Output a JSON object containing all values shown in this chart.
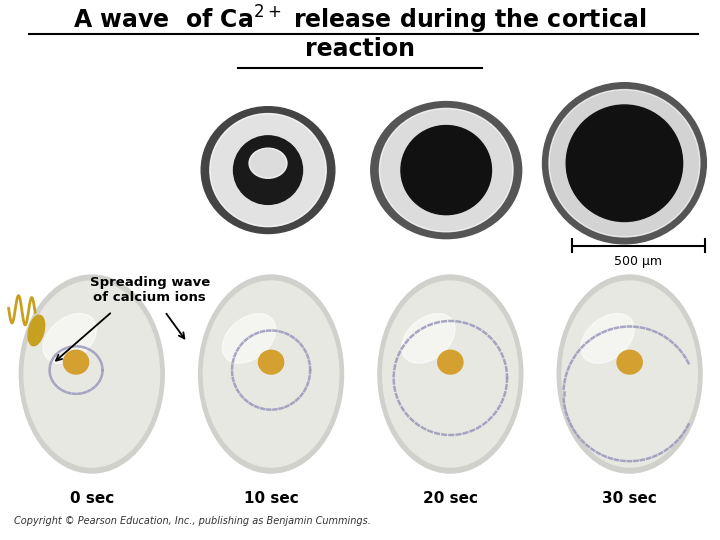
{
  "title_line1": "A wave  of Ca",
  "title_superscript": "2+",
  "title_line2": " release during the cortical",
  "title_line3": "reaction",
  "background_color": "#ffffff",
  "times": [
    "0 sec",
    "10 sec",
    "20 sec",
    "30 sec"
  ],
  "spreading_wave_label": "Spreading wave\nof calcium ions",
  "copyright": "Copyright © Pearson Education, Inc., publishing as Benjamin Cummings.",
  "scale_bar_label": "500 μm",
  "egg_color": "#e8e8e2",
  "nucleus_color": "#d4a030",
  "sperm_color": "#c8a020",
  "wave_color": "#9999bb",
  "photo_bg": "#111111"
}
